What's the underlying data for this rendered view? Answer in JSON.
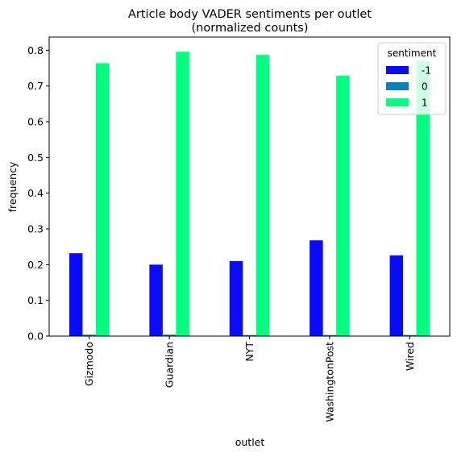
{
  "chart_data": {
    "type": "bar",
    "title_lines": [
      "Article body VADER sentiments per outlet",
      "(normalized counts)"
    ],
    "xlabel": "outlet",
    "ylabel": "frequency",
    "categories": [
      "Gizmodo",
      "Guardian",
      "NYT",
      "WashingtonPost",
      "Wired"
    ],
    "series": [
      {
        "name": "-1",
        "color": "#0a0aff",
        "values": [
          0.232,
          0.2,
          0.21,
          0.268,
          0.226
        ]
      },
      {
        "name": "0",
        "color": "#0a7fbf",
        "values": [
          0.004,
          0.004,
          0.003,
          0.003,
          0.003
        ]
      },
      {
        "name": "1",
        "color": "#00ff80",
        "values": [
          0.764,
          0.796,
          0.787,
          0.729,
          0.771
        ]
      }
    ],
    "ylim": [
      0,
      0.837
    ],
    "yticks": [
      "0.0",
      "0.1",
      "0.2",
      "0.3",
      "0.4",
      "0.5",
      "0.6",
      "0.7",
      "0.8"
    ],
    "legend": {
      "title": "sentiment",
      "placement": "top-right"
    },
    "grid": false
  }
}
